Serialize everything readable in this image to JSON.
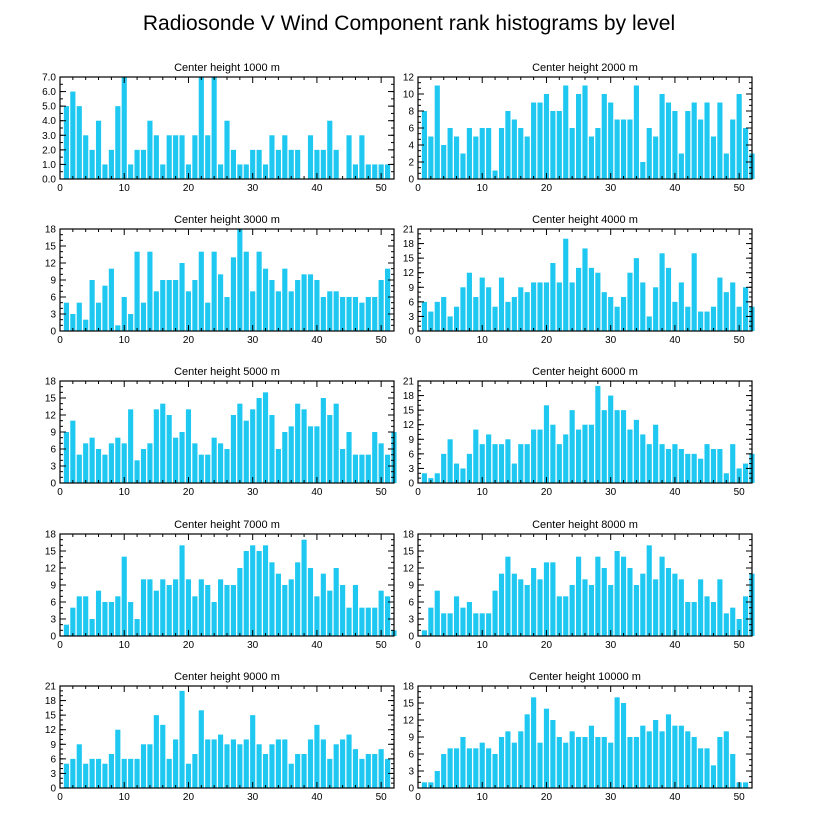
{
  "title": "Radiosonde V Wind Component rank histograms by level",
  "bar_color": "#1ec8f0",
  "chart_data": [
    {
      "type": "bar",
      "title": "Center height 1000 m",
      "xlim": [
        0,
        52
      ],
      "xticks": [
        0,
        10,
        20,
        30,
        40,
        50
      ],
      "ylim": [
        0,
        7
      ],
      "yticks": [
        "0.0",
        "1.0",
        "2.0",
        "3.0",
        "4.0",
        "5.0",
        "6.0",
        "7.0"
      ],
      "values": [
        5,
        6,
        5,
        3,
        2,
        4,
        1,
        2,
        5,
        7,
        1,
        2,
        2,
        4,
        3,
        1,
        3,
        3,
        3,
        1,
        3,
        7,
        3,
        7,
        1,
        4,
        2,
        1,
        1,
        2,
        2,
        1,
        3,
        2,
        3,
        2,
        2,
        0,
        3,
        2,
        2,
        4,
        2,
        0,
        3,
        1,
        3,
        1,
        1,
        1,
        1
      ]
    },
    {
      "type": "bar",
      "title": "Center height 2000 m",
      "xlim": [
        0,
        52
      ],
      "xticks": [
        0,
        10,
        20,
        30,
        40,
        50
      ],
      "ylim": [
        0,
        12
      ],
      "yticks": [
        "0",
        "2",
        "4",
        "6",
        "8",
        "10",
        "12"
      ],
      "values": [
        8,
        5,
        11,
        4,
        6,
        5,
        3,
        6,
        5,
        6,
        6,
        1,
        6,
        8,
        7,
        6,
        5,
        9,
        9,
        10,
        8,
        8,
        11,
        6,
        10,
        11,
        5,
        6,
        10,
        9,
        7,
        7,
        7,
        11,
        2,
        6,
        5,
        10,
        9,
        8,
        3,
        8,
        9,
        7,
        9,
        5,
        9,
        3,
        7,
        10,
        6,
        3
      ]
    },
    {
      "type": "bar",
      "title": "Center height 3000 m",
      "xlim": [
        0,
        52
      ],
      "xticks": [
        0,
        10,
        20,
        30,
        40,
        50
      ],
      "ylim": [
        0,
        18
      ],
      "yticks": [
        "0",
        "3",
        "6",
        "9",
        "12",
        "15",
        "18"
      ],
      "values": [
        5,
        3,
        5,
        2,
        9,
        5,
        8,
        11,
        1,
        6,
        3,
        14,
        5,
        14,
        7,
        9,
        9,
        9,
        12,
        7,
        9,
        14,
        5,
        14,
        10,
        6,
        13,
        18,
        14,
        7,
        14,
        11,
        9,
        7,
        11,
        7,
        9,
        10,
        10,
        9,
        6,
        7,
        7,
        6,
        6,
        6,
        5,
        6,
        6,
        9,
        11
      ]
    },
    {
      "type": "bar",
      "title": "Center height 4000 m",
      "xlim": [
        0,
        52
      ],
      "xticks": [
        0,
        10,
        20,
        30,
        40,
        50
      ],
      "ylim": [
        0,
        21
      ],
      "yticks": [
        "0",
        "3",
        "6",
        "9",
        "12",
        "15",
        "18",
        "21"
      ],
      "values": [
        6,
        4,
        6,
        7,
        3,
        5,
        9,
        12,
        7,
        11,
        9,
        5,
        11,
        6,
        7,
        9,
        8,
        10,
        10,
        10,
        14,
        10,
        19,
        10,
        13,
        17,
        13,
        12,
        8,
        7,
        5,
        7,
        12,
        15,
        10,
        3,
        9,
        16,
        13,
        6,
        10,
        5,
        16,
        4,
        4,
        5,
        11,
        8,
        10,
        5,
        9,
        5
      ]
    },
    {
      "type": "bar",
      "title": "Center height 5000 m",
      "xlim": [
        0,
        52
      ],
      "xticks": [
        0,
        10,
        20,
        30,
        40,
        50
      ],
      "ylim": [
        0,
        18
      ],
      "yticks": [
        "0",
        "3",
        "6",
        "9",
        "12",
        "15",
        "18"
      ],
      "values": [
        9,
        11,
        5,
        7,
        8,
        6,
        5,
        7,
        8,
        7,
        13,
        4,
        6,
        7,
        13,
        14,
        12,
        8,
        9,
        13,
        7,
        5,
        5,
        8,
        7,
        6,
        12,
        14,
        11,
        13,
        15,
        16,
        12,
        6,
        9,
        10,
        14,
        13,
        10,
        10,
        15,
        12,
        14,
        6,
        9,
        5,
        5,
        5,
        9,
        7,
        5,
        9
      ]
    },
    {
      "type": "bar",
      "title": "Center height 6000 m",
      "xlim": [
        0,
        52
      ],
      "xticks": [
        0,
        10,
        20,
        30,
        40,
        50
      ],
      "ylim": [
        0,
        21
      ],
      "yticks": [
        "0",
        "3",
        "6",
        "9",
        "12",
        "15",
        "18",
        "21"
      ],
      "values": [
        2,
        1,
        2,
        6,
        9,
        4,
        3,
        6,
        11,
        8,
        10,
        8,
        8,
        9,
        4,
        8,
        8,
        11,
        11,
        16,
        12,
        8,
        10,
        15,
        11,
        12,
        12,
        20,
        15,
        18,
        15,
        15,
        11,
        13,
        10,
        8,
        12,
        8,
        7,
        8,
        7,
        6,
        6,
        5,
        8,
        7,
        7,
        2,
        8,
        3,
        4,
        6
      ]
    },
    {
      "type": "bar",
      "title": "Center height 7000 m",
      "xlim": [
        0,
        52
      ],
      "xticks": [
        0,
        10,
        20,
        30,
        40,
        50
      ],
      "ylim": [
        0,
        18
      ],
      "yticks": [
        "0",
        "3",
        "6",
        "9",
        "12",
        "15",
        "18"
      ],
      "values": [
        2,
        5,
        7,
        7,
        3,
        8,
        6,
        6,
        7,
        14,
        6,
        3,
        10,
        10,
        8,
        10,
        9,
        10,
        16,
        10,
        7,
        10,
        9,
        6,
        10,
        9,
        9,
        12,
        15,
        16,
        15,
        16,
        13,
        11,
        9,
        10,
        13,
        17,
        12,
        7,
        11,
        8,
        12,
        9,
        5,
        9,
        5,
        5,
        5,
        8,
        7,
        1
      ]
    },
    {
      "type": "bar",
      "title": "Center height 8000 m",
      "xlim": [
        0,
        52
      ],
      "xticks": [
        0,
        10,
        20,
        30,
        40,
        50
      ],
      "ylim": [
        0,
        18
      ],
      "yticks": [
        "0",
        "3",
        "6",
        "9",
        "12",
        "15",
        "18"
      ],
      "values": [
        1,
        5,
        8,
        4,
        4,
        7,
        5,
        6,
        4,
        4,
        4,
        8,
        11,
        14,
        11,
        10,
        9,
        12,
        10,
        13,
        13,
        7,
        7,
        9,
        14,
        10,
        9,
        14,
        12,
        9,
        15,
        14,
        12,
        9,
        11,
        16,
        10,
        14,
        12,
        11,
        10,
        6,
        6,
        10,
        7,
        6,
        10,
        4,
        5,
        3,
        7,
        11
      ]
    },
    {
      "type": "bar",
      "title": "Center height 9000 m",
      "xlim": [
        0,
        52
      ],
      "xticks": [
        0,
        10,
        20,
        30,
        40,
        50
      ],
      "ylim": [
        0,
        21
      ],
      "yticks": [
        "0",
        "3",
        "6",
        "9",
        "12",
        "15",
        "18",
        "21"
      ],
      "values": [
        5,
        6,
        9,
        5,
        6,
        6,
        5,
        7,
        12,
        6,
        6,
        6,
        9,
        9,
        15,
        13,
        6,
        10,
        20,
        5,
        7,
        16,
        10,
        10,
        11,
        9,
        10,
        9,
        10,
        15,
        9,
        7,
        9,
        10,
        10,
        5,
        7,
        7,
        10,
        13,
        10,
        6,
        9,
        10,
        11,
        8,
        6,
        7,
        7,
        8,
        6
      ]
    },
    {
      "type": "bar",
      "title": "Center height 10000 m",
      "xlim": [
        0,
        52
      ],
      "xticks": [
        0,
        10,
        20,
        30,
        40,
        50
      ],
      "ylim": [
        0,
        18
      ],
      "yticks": [
        "0",
        "3",
        "6",
        "9",
        "12",
        "15",
        "18"
      ],
      "values": [
        1,
        1,
        3,
        6,
        7,
        7,
        9,
        7,
        7,
        8,
        7,
        6,
        9,
        10,
        8,
        10,
        13,
        16,
        8,
        14,
        12,
        9,
        8,
        10,
        9,
        9,
        11,
        9,
        9,
        8,
        16,
        15,
        9,
        9,
        11,
        10,
        12,
        10,
        13,
        11,
        11,
        10,
        9,
        7,
        7,
        4,
        9,
        10,
        6,
        1,
        1
      ]
    }
  ]
}
